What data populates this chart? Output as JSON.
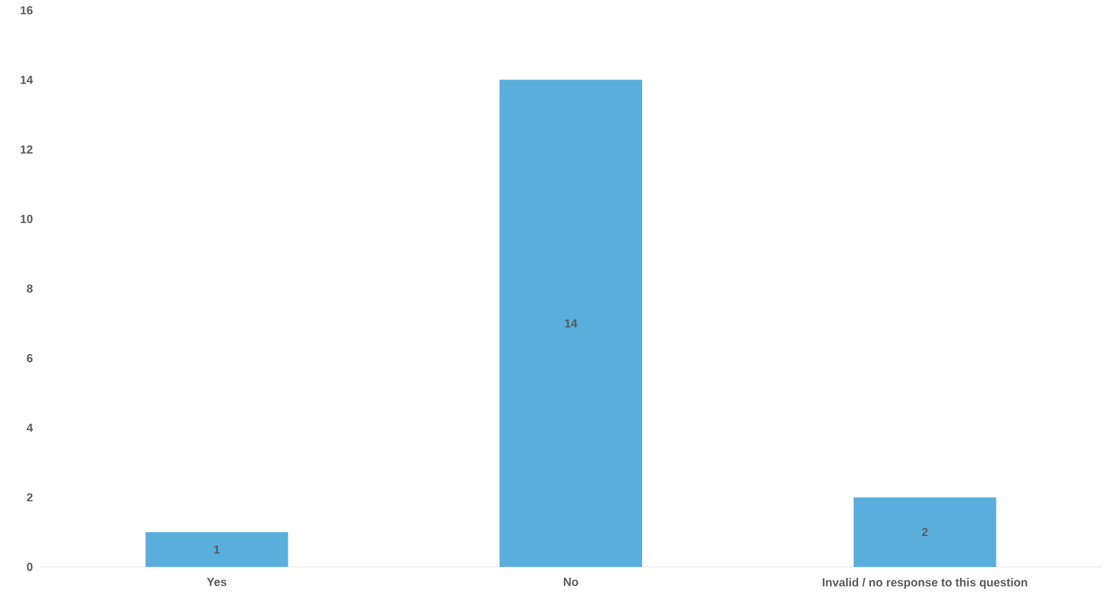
{
  "chart_data": {
    "type": "bar",
    "categories": [
      "Yes",
      "No",
      "Invalid / no response to this question"
    ],
    "values": [
      1,
      14,
      2
    ],
    "color": "#5aaedc",
    "ylim": [
      0,
      16
    ],
    "yticks": [
      0,
      2,
      4,
      6,
      8,
      10,
      12,
      14,
      16
    ],
    "data_labels": true
  }
}
